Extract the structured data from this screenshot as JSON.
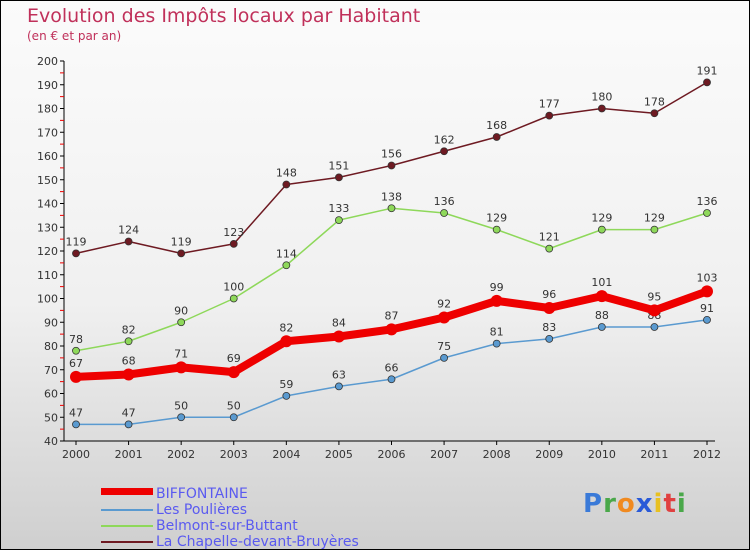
{
  "title": "Evolution des Impôts locaux par Habitant",
  "subtitle": "(en € et par an)",
  "logo": "Proxiti",
  "chart_data": {
    "type": "line",
    "title": "Evolution des Impôts locaux par Habitant",
    "subtitle": "(en € et par an)",
    "x": [
      "2000",
      "2001",
      "2002",
      "2003",
      "2004",
      "2005",
      "2006",
      "2007",
      "2008",
      "2009",
      "2010",
      "2011",
      "2012"
    ],
    "ylim": [
      40,
      200
    ],
    "yticks": [
      40,
      50,
      60,
      70,
      80,
      90,
      100,
      110,
      120,
      130,
      140,
      150,
      160,
      170,
      180,
      190,
      200
    ],
    "legend_position": "bottom-left",
    "series": [
      {
        "name": "BIFFONTAINE",
        "color": "#ee0000",
        "values": [
          67,
          68,
          71,
          69,
          82,
          84,
          87,
          92,
          99,
          96,
          101,
          95,
          103
        ]
      },
      {
        "name": "Les Poulières",
        "color": "#5a9ad0",
        "values": [
          47,
          47,
          50,
          50,
          59,
          63,
          66,
          75,
          81,
          83,
          88,
          88,
          91
        ]
      },
      {
        "name": "Belmont-sur-Buttant",
        "color": "#8ed85a",
        "values": [
          78,
          82,
          90,
          100,
          114,
          133,
          138,
          136,
          129,
          121,
          129,
          129,
          136
        ]
      },
      {
        "name": "La Chapelle-devant-Bruyères",
        "color": "#6e1a22",
        "values": [
          119,
          124,
          119,
          123,
          148,
          151,
          156,
          162,
          168,
          177,
          180,
          178,
          191
        ]
      }
    ]
  }
}
